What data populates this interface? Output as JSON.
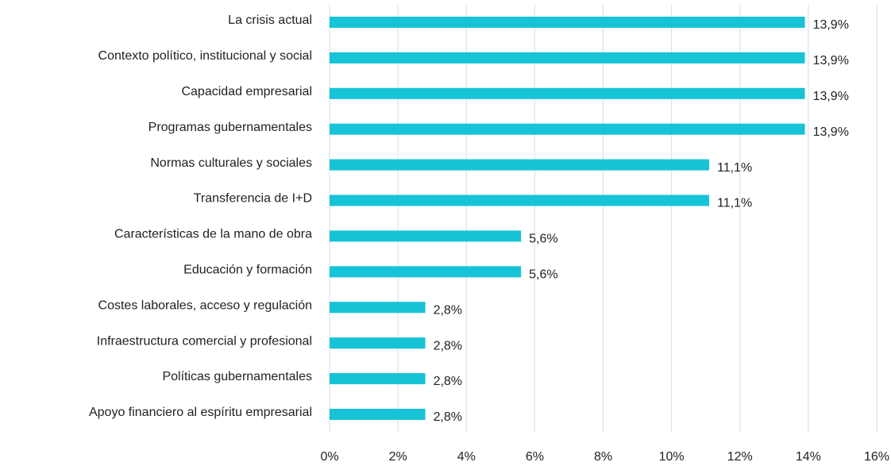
{
  "chart_data": {
    "type": "bar",
    "orientation": "horizontal",
    "categories": [
      "La crisis actual",
      "Contexto político, institucional y social",
      "Capacidad empresarial",
      "Programas gubernamentales",
      "Normas culturales y sociales",
      "Transferencia de I+D",
      "Características de la mano de obra",
      "Educación y formación",
      "Costes laborales, acceso y regulación",
      "Infraestructura comercial y profesional",
      "Políticas gubernamentales",
      "Apoyo financiero al espíritu empresarial"
    ],
    "values": [
      13.9,
      13.9,
      13.9,
      13.9,
      11.1,
      11.1,
      5.6,
      5.6,
      2.8,
      2.8,
      2.8,
      2.8
    ],
    "value_labels": [
      "13,9%",
      "13,9%",
      "13,9%",
      "13,9%",
      "11,1%",
      "11,1%",
      "5,6%",
      "5,6%",
      "2,8%",
      "2,8%",
      "2,8%",
      "2,8%"
    ],
    "color": "#17c3d6",
    "xlim": [
      0,
      16
    ],
    "xticks": [
      {
        "value": 0,
        "label": "0%"
      },
      {
        "value": 2,
        "label": "2%"
      },
      {
        "value": 4,
        "label": "4%"
      },
      {
        "value": 6,
        "label": "6%"
      },
      {
        "value": 8,
        "label": "8%"
      },
      {
        "value": 10,
        "label": "10%"
      },
      {
        "value": 12,
        "label": "12%"
      },
      {
        "value": 14,
        "label": "14%"
      },
      {
        "value": 16,
        "label": "16%"
      }
    ],
    "grid": true
  }
}
